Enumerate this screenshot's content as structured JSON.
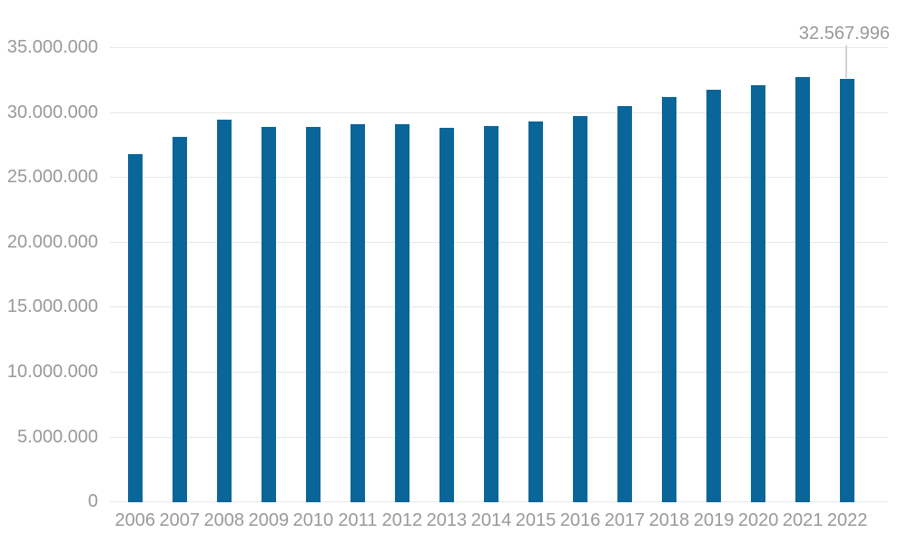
{
  "chart_data": {
    "type": "bar",
    "title": "",
    "categories": [
      "2006",
      "2007",
      "2008",
      "2009",
      "2010",
      "2011",
      "2012",
      "2013",
      "2014",
      "2015",
      "2016",
      "2017",
      "2018",
      "2019",
      "2020",
      "2021",
      "2022"
    ],
    "values": [
      26800000,
      28100000,
      29400000,
      28900000,
      28900000,
      29050000,
      29050000,
      28800000,
      28950000,
      29300000,
      29700000,
      30500000,
      31200000,
      31750000,
      32100000,
      32700000,
      32567996
    ],
    "y_ticks": [
      "0",
      "5.000.000",
      "10.000.000",
      "15.000.000",
      "20.000.000",
      "25.000.000",
      "30.000.000",
      "35.000.000"
    ],
    "ylim": [
      0,
      35000000
    ],
    "xlabel": "",
    "ylabel": "",
    "grid": true,
    "legend": "none",
    "annotation": {
      "text": "32.567.996",
      "target_category": "2022"
    },
    "colors": {
      "bar": "#0a6699",
      "gridline": "#e7e7e7",
      "axis_text": "#999999",
      "annotation_text": "#999999",
      "leader_line": "#d2d2d2",
      "background": "#ffffff"
    }
  }
}
